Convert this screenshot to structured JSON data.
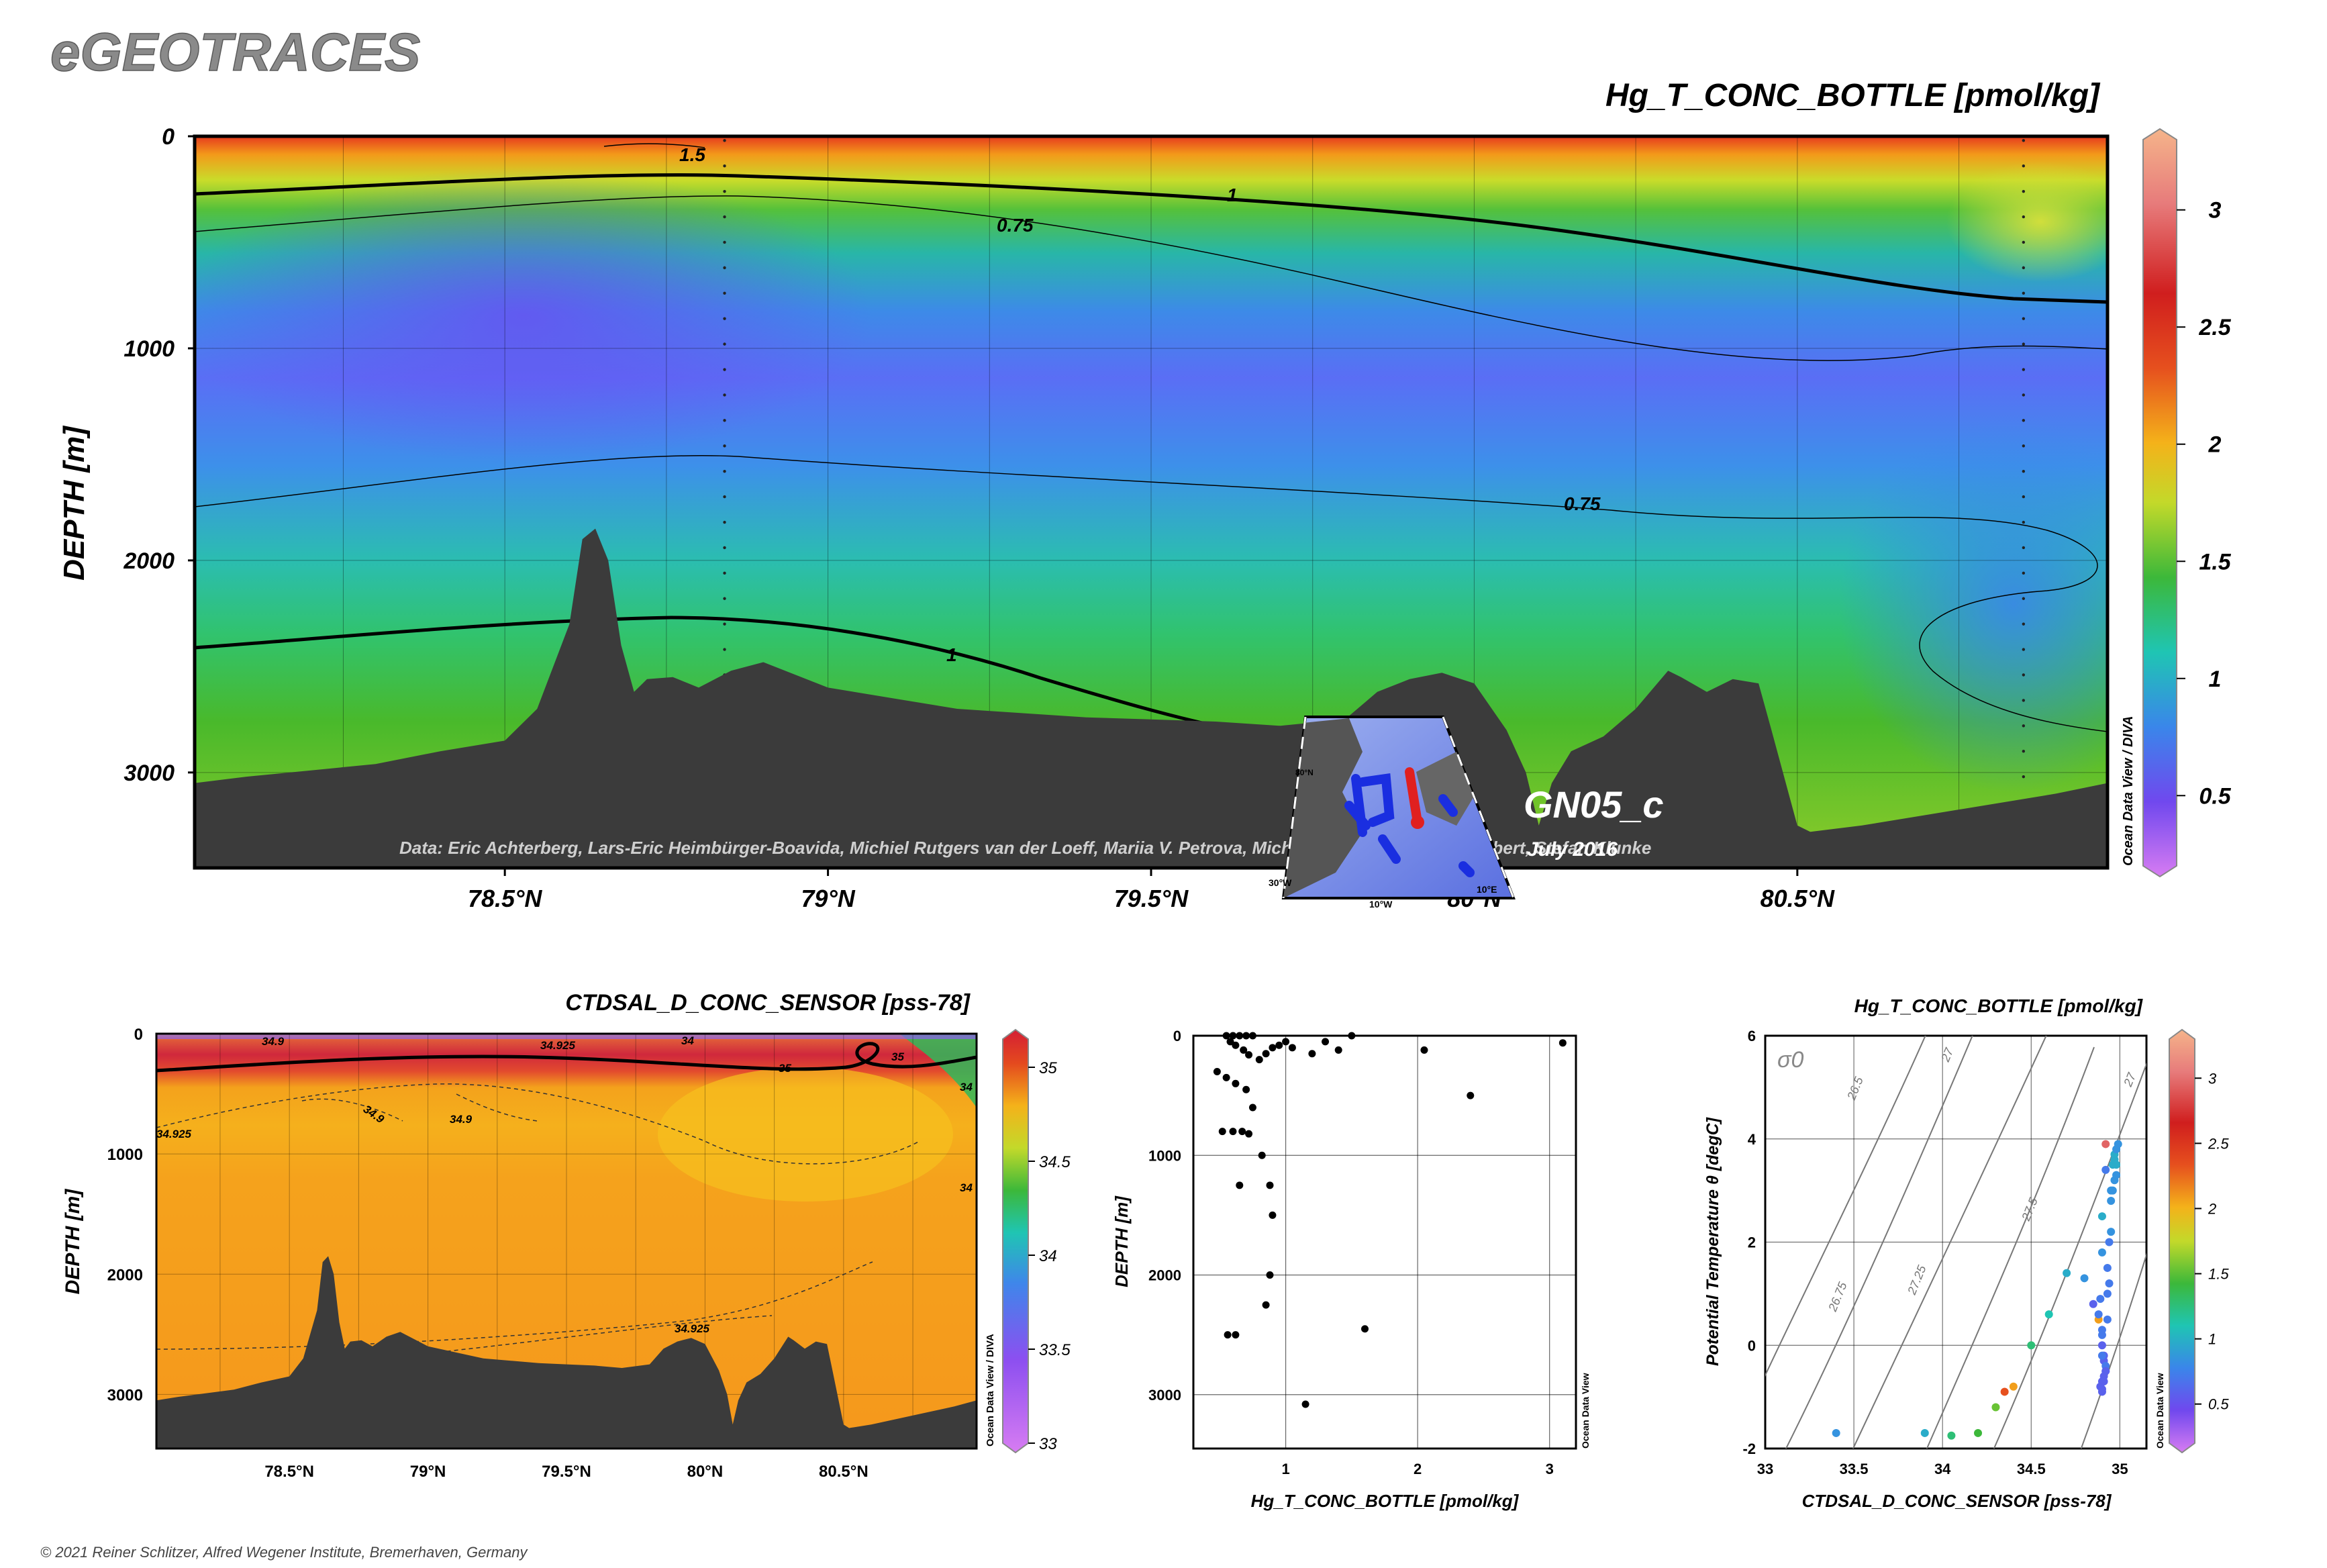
{
  "header": {
    "logo": "eGEOTRACES",
    "main_title": "Hg_T_CONC_BOTTLE [pmol/kg]"
  },
  "colors": {
    "land": "#3b3b3b",
    "frame": "#000000",
    "logo_fill": "#8a8a8a",
    "mark": "#000000"
  },
  "main_section": {
    "ylabel": "DEPTH [m]",
    "yticks": [
      "0",
      "1000",
      "2000",
      "3000"
    ],
    "xticks": [
      "78.5°N",
      "79°N",
      "79.5°N",
      "80°N",
      "80.5°N"
    ],
    "contour_labels": [
      "1.5",
      "1",
      "0.75",
      "0.75",
      "1"
    ],
    "credit": "Data: Eric Achterberg, Lars-Eric Heimbürger-Boavida, Michiel Rutgers van der Loeff, Mariia V. Petrova, Micha Rijkenberg, Walter Geibert, Stefan Klunke",
    "cruise": "GN05_c",
    "date": "July 2016",
    "odv_label": "Ocean Data View / DIVA",
    "inset_map_labels": [
      "30°W",
      "10°W",
      "10°E",
      "80°N"
    ],
    "colorbar_ticks": [
      "3",
      "2.5",
      "2",
      "1.5",
      "1",
      "0.5"
    ]
  },
  "salinity_section": {
    "title": "CTDSAL_D_CONC_SENSOR [pss-78]",
    "ylabel": "DEPTH [m]",
    "yticks": [
      "0",
      "1000",
      "2000",
      "3000"
    ],
    "xticks": [
      "78.5°N",
      "79°N",
      "79.5°N",
      "80°N",
      "80.5°N"
    ],
    "contour_labels": [
      "34.9",
      "34.925",
      "34",
      "35",
      "35",
      "34.925",
      "34.9",
      "34.9",
      "34.925",
      "34",
      "34"
    ],
    "colorbar_ticks": [
      "35",
      "34.5",
      "34",
      "33.5",
      "33"
    ],
    "odv_label": "Ocean Data View / DIVA"
  },
  "profile_plot": {
    "xlabel": "Hg_T_CONC_BOTTLE [pmol/kg]",
    "ylabel": "DEPTH [m]",
    "xticks": [
      "1",
      "2",
      "3"
    ],
    "yticks": [
      "0",
      "1000",
      "2000",
      "3000"
    ],
    "odv_label": "Ocean Data View"
  },
  "ts_plot": {
    "title": "Hg_T_CONC_BOTTLE [pmol/kg]",
    "xlabel": "CTDSAL_D_CONC_SENSOR [pss-78]",
    "ylabel": "Potential Temperature θ [degC]",
    "sigma_label": "σ0",
    "xticks": [
      "33",
      "33.5",
      "34",
      "34.5",
      "35"
    ],
    "yticks": [
      "6",
      "4",
      "2",
      "0",
      "-2"
    ],
    "isopycnal_labels": [
      "26.5",
      "27",
      "27",
      "26.75",
      "27.25",
      "27.5"
    ],
    "colorbar_ticks": [
      "3",
      "2.5",
      "2",
      "1.5",
      "1",
      "0.5"
    ],
    "odv_label": "Ocean Data View"
  },
  "footer": {
    "copyright": "© 2021 Reiner Schlitzer, Alfred Wegener Institute, Bremerhaven, Germany"
  },
  "chart_data": [
    {
      "type": "heatmap",
      "title": "Hg_T_CONC_BOTTLE [pmol/kg]",
      "ylabel": "DEPTH [m]",
      "xlim": [
        78.02,
        80.98
      ],
      "ylim": [
        3450,
        0
      ],
      "color_range": [
        0.2,
        3.3
      ],
      "bathymetry": {
        "x": [
          78.02,
          78.1,
          78.2,
          78.3,
          78.4,
          78.5,
          78.55,
          78.6,
          78.62,
          78.64,
          78.66,
          78.68,
          78.7,
          78.72,
          78.76,
          78.8,
          78.85,
          78.9,
          79.0,
          79.1,
          79.2,
          79.3,
          79.4,
          79.5,
          79.6,
          79.7,
          79.8,
          79.85,
          79.9,
          79.95,
          80.0,
          80.05,
          80.08,
          80.1,
          80.12,
          80.15,
          80.2,
          80.25,
          80.3,
          80.32,
          80.36,
          80.4,
          80.44,
          80.46,
          80.5,
          80.52,
          80.6,
          80.7,
          80.8,
          80.9,
          80.98
        ],
        "depth": [
          3050,
          3020,
          2990,
          2960,
          2900,
          2850,
          2700,
          2300,
          1900,
          1850,
          2000,
          2400,
          2620,
          2560,
          2550,
          2600,
          2520,
          2480,
          2600,
          2650,
          2700,
          2720,
          2740,
          2750,
          2760,
          2780,
          2750,
          2620,
          2560,
          2530,
          2580,
          2800,
          3000,
          3250,
          3050,
          2900,
          2830,
          2700,
          2520,
          2550,
          2620,
          2560,
          2580,
          2800,
          3250,
          3280,
          3250,
          3200,
          3150,
          3100,
          3050
        ]
      },
      "station_lat": [
        78.84,
        80.85
      ]
    },
    {
      "type": "heatmap",
      "title": "CTDSAL_D_CONC_SENSOR [pss-78]",
      "ylabel": "DEPTH [m]",
      "xlim": [
        78.02,
        80.98
      ],
      "ylim": [
        3450,
        0
      ],
      "color_range": [
        33,
        35.15
      ]
    },
    {
      "type": "scatter",
      "xlabel": "Hg_T_CONC_BOTTLE [pmol/kg]",
      "ylabel": "DEPTH [m]",
      "xlim": [
        0.3,
        3.2
      ],
      "ylim": [
        3450,
        0
      ],
      "x": [
        0.55,
        0.6,
        0.65,
        0.7,
        0.75,
        0.58,
        0.62,
        0.68,
        0.72,
        0.8,
        0.85,
        0.9,
        0.95,
        1.0,
        1.05,
        1.2,
        1.3,
        1.4,
        1.5,
        2.05,
        2.4,
        3.1,
        0.48,
        0.55,
        0.62,
        0.7,
        0.75,
        0.52,
        0.6,
        0.67,
        0.72,
        0.82,
        0.88,
        0.9,
        0.88,
        1.6,
        0.85,
        0.62,
        0.56,
        0.65,
        1.15
      ],
      "y": [
        0,
        0,
        0,
        0,
        0,
        50,
        80,
        120,
        160,
        200,
        150,
        100,
        80,
        50,
        100,
        150,
        50,
        120,
        0,
        120,
        500,
        60,
        300,
        350,
        400,
        450,
        600,
        800,
        800,
        800,
        820,
        1000,
        1250,
        1500,
        2000,
        2450,
        2250,
        2500,
        2500,
        1250,
        3080
      ]
    },
    {
      "type": "scatter",
      "title": "Hg_T_CONC_BOTTLE [pmol/kg]",
      "xlabel": "CTDSAL_D_CONC_SENSOR [pss-78]",
      "ylabel": "Potential Temperature θ [degC]",
      "xlim": [
        33,
        35.15
      ],
      "ylim": [
        -2,
        6
      ],
      "x": [
        33.4,
        33.9,
        34.05,
        34.2,
        34.3,
        34.35,
        34.4,
        34.5,
        34.6,
        34.7,
        34.8,
        34.85,
        34.88,
        34.9,
        34.9,
        34.91,
        34.92,
        34.9,
        34.89,
        34.9,
        34.91,
        34.92,
        34.93,
        34.94,
        34.95,
        34.96,
        34.97,
        34.98,
        34.92,
        34.9,
        34.9,
        34.89,
        34.9,
        34.88,
        34.91,
        34.93,
        34.95,
        34.97,
        34.98,
        34.99,
        34.92,
        34.9,
        34.91,
        34.92,
        34.9,
        34.93,
        34.94,
        34.95,
        34.96,
        34.97,
        34.98
      ],
      "y": [
        -1.7,
        -1.7,
        -1.75,
        -1.7,
        -1.2,
        -0.9,
        -0.8,
        0,
        0.6,
        1.4,
        1.3,
        0.8,
        0.5,
        0.2,
        0,
        -0.3,
        -0.5,
        -0.7,
        -0.8,
        -0.9,
        -0.6,
        -0.4,
        1.0,
        2.0,
        3.0,
        3.5,
        3.7,
        3.8,
        3.9,
        2.5,
        1.8,
        0.9,
        0.3,
        0.6,
        -0.2,
        1.5,
        2.8,
        3.2,
        3.5,
        3.9,
        3.4,
        -0.85,
        -0.7,
        -0.5,
        -0.2,
        0.5,
        1.2,
        2.2,
        3.0,
        3.6,
        3.3
      ],
      "values": [
        0.8,
        0.9,
        1.1,
        1.2,
        1.3,
        2.0,
        1.8,
        1.1,
        1.0,
        0.9,
        0.8,
        0.6,
        1.8,
        0.7,
        0.6,
        0.6,
        0.6,
        0.6,
        0.6,
        0.6,
        0.6,
        0.7,
        0.7,
        0.7,
        0.8,
        0.9,
        0.9,
        0.8,
        2.6,
        0.9,
        0.8,
        0.7,
        0.7,
        0.7,
        0.6,
        0.7,
        0.8,
        0.8,
        0.9,
        0.8,
        0.7,
        0.6,
        0.6,
        0.6,
        0.7,
        0.7,
        0.7,
        0.8,
        0.8,
        0.9,
        0.8
      ]
    }
  ]
}
